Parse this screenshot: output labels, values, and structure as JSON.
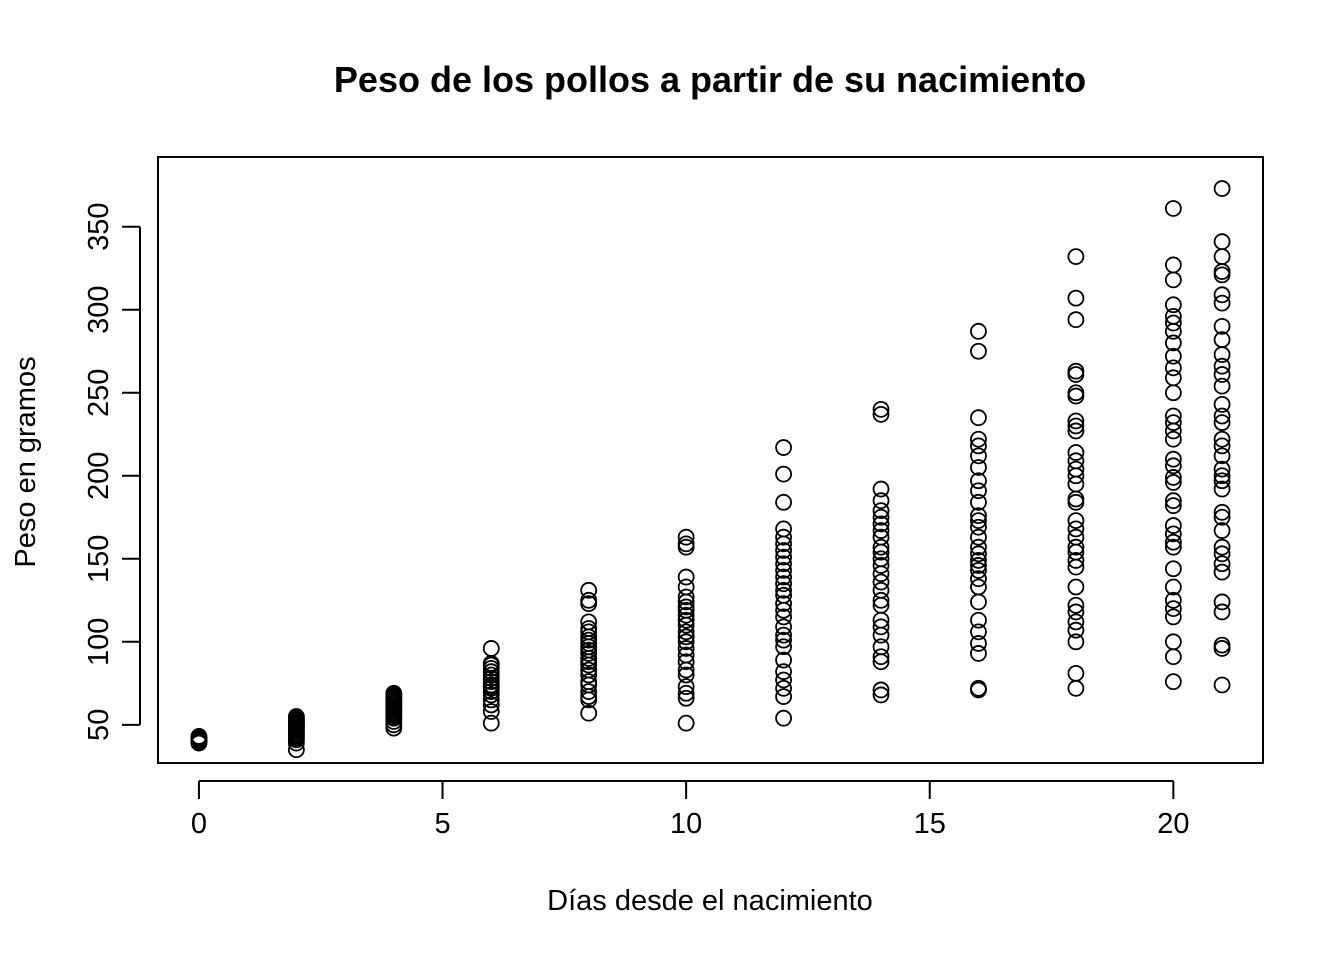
{
  "chart_data": {
    "type": "scatter",
    "title": "Peso de los pollos a partir de su nacimiento",
    "xlabel": "Días desde el nacimiento",
    "ylabel": "Peso en gramos",
    "xlim": [
      -0.84,
      21.84
    ],
    "ylim": [
      27.0,
      392.0
    ],
    "xticks": [
      0,
      5,
      10,
      15,
      20
    ],
    "yticks": [
      50,
      100,
      150,
      200,
      250,
      300,
      350
    ],
    "grid": false,
    "legend": "none",
    "marker": "open-circle",
    "points": {
      "0": [
        39,
        40,
        41,
        42,
        43,
        41,
        40,
        42
      ],
      "2": [
        35,
        39,
        41,
        42,
        43,
        44,
        45,
        46,
        47,
        48,
        49,
        50,
        51,
        52,
        53,
        54,
        55,
        49,
        51,
        53
      ],
      "4": [
        48,
        50,
        52,
        54,
        55,
        56,
        57,
        58,
        59,
        60,
        61,
        62,
        63,
        64,
        65,
        66,
        67,
        68,
        69
      ],
      "6": [
        51,
        58,
        62,
        65,
        68,
        70,
        72,
        73,
        74,
        76,
        78,
        80,
        82,
        84,
        86,
        87,
        96
      ],
      "8": [
        57,
        65,
        67,
        70,
        74,
        76,
        80,
        83,
        86,
        88,
        90,
        93,
        95,
        97,
        99,
        101,
        103,
        106,
        108,
        112,
        123,
        125,
        131
      ],
      "10": [
        51,
        66,
        69,
        73,
        80,
        83,
        88,
        92,
        96,
        100,
        103,
        106,
        110,
        113,
        116,
        119,
        121,
        124,
        127,
        133,
        139,
        157,
        159,
        163
      ],
      "12": [
        54,
        67,
        72,
        77,
        82,
        89,
        97,
        101,
        104,
        109,
        115,
        119,
        123,
        128,
        131,
        135,
        139,
        143,
        147,
        151,
        155,
        159,
        163,
        168,
        184,
        201,
        217
      ],
      "14": [
        68,
        71,
        88,
        91,
        97,
        104,
        109,
        113,
        122,
        125,
        131,
        136,
        141,
        146,
        150,
        154,
        157,
        163,
        167,
        171,
        175,
        179,
        185,
        192,
        237,
        240
      ],
      "16": [
        71,
        72,
        93,
        99,
        106,
        113,
        124,
        133,
        138,
        143,
        146,
        149,
        153,
        157,
        163,
        169,
        173,
        176,
        184,
        191,
        197,
        205,
        212,
        218,
        222,
        235,
        275,
        287
      ],
      "18": [
        72,
        81,
        100,
        107,
        112,
        118,
        122,
        133,
        145,
        149,
        154,
        157,
        163,
        168,
        173,
        184,
        186,
        195,
        200,
        204,
        209,
        214,
        227,
        230,
        233,
        248,
        250,
        261,
        263,
        294,
        307,
        332
      ],
      "20": [
        76,
        91,
        100,
        115,
        120,
        125,
        133,
        144,
        157,
        160,
        165,
        170,
        182,
        185,
        196,
        199,
        206,
        210,
        222,
        227,
        232,
        236,
        250,
        259,
        265,
        272,
        280,
        287,
        292,
        296,
        303,
        318,
        327,
        361
      ],
      "21": [
        74,
        96,
        98,
        118,
        124,
        142,
        147,
        153,
        157,
        167,
        175,
        178,
        192,
        197,
        200,
        204,
        212,
        218,
        222,
        232,
        236,
        243,
        254,
        261,
        266,
        273,
        282,
        290,
        304,
        309,
        321,
        323,
        332,
        341,
        373
      ]
    }
  }
}
